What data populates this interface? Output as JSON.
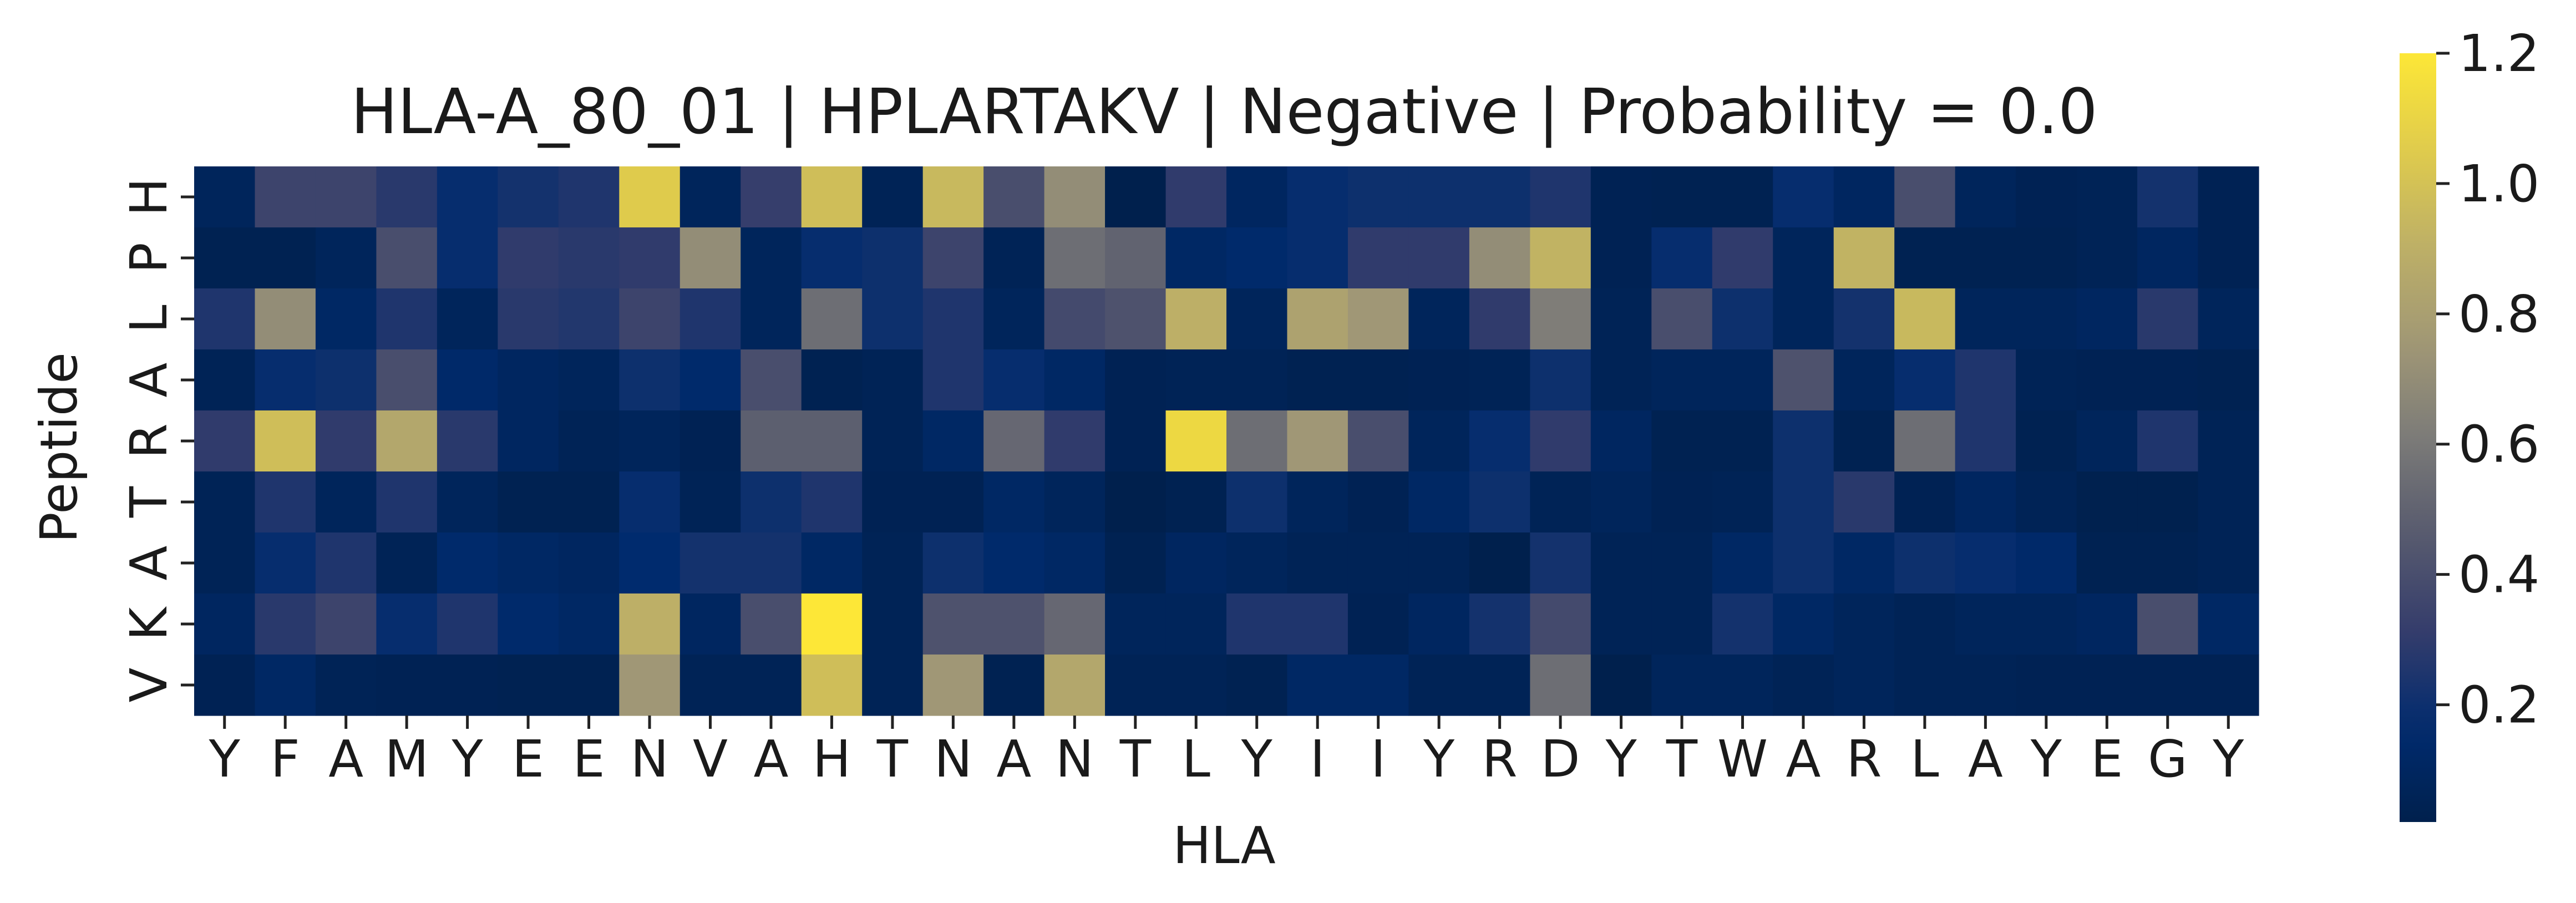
{
  "chart_data": {
    "type": "heatmap",
    "title": "HLA-A_80_01 | HPLARTAKV | Negative | Probability = 0.0",
    "xlabel": "HLA",
    "ylabel": "Peptide",
    "x_labels": [
      "Y",
      "F",
      "A",
      "M",
      "Y",
      "E",
      "E",
      "N",
      "V",
      "A",
      "H",
      "T",
      "N",
      "A",
      "N",
      "T",
      "L",
      "Y",
      "I",
      "I",
      "Y",
      "R",
      "D",
      "Y",
      "T",
      "W",
      "A",
      "R",
      "L",
      "A",
      "Y",
      "E",
      "G",
      "Y"
    ],
    "y_labels": [
      "H",
      "P",
      "L",
      "A",
      "R",
      "T",
      "A",
      "K",
      "V"
    ],
    "colorbar": {
      "colormap": "cividis",
      "vmin": 0.02,
      "vmax": 1.2,
      "ticks": [
        0.2,
        0.4,
        0.6,
        0.8,
        1.0,
        1.2
      ],
      "tick_labels": [
        "0.2",
        "0.4",
        "0.6",
        "0.8",
        "1.0",
        "1.2"
      ]
    },
    "values": [
      [
        0.08,
        0.35,
        0.35,
        0.28,
        0.18,
        0.22,
        0.25,
        1.05,
        0.08,
        0.32,
        0.98,
        0.06,
        0.95,
        0.4,
        0.7,
        0.02,
        0.3,
        0.1,
        0.18,
        0.2,
        0.2,
        0.2,
        0.25,
        0.05,
        0.04,
        0.04,
        0.18,
        0.1,
        0.4,
        0.08,
        0.05,
        0.06,
        0.22,
        0.05
      ],
      [
        0.04,
        0.04,
        0.08,
        0.4,
        0.18,
        0.3,
        0.28,
        0.3,
        0.7,
        0.08,
        0.18,
        0.2,
        0.35,
        0.06,
        0.55,
        0.5,
        0.12,
        0.15,
        0.18,
        0.3,
        0.3,
        0.7,
        0.92,
        0.05,
        0.18,
        0.3,
        0.08,
        0.92,
        0.04,
        0.04,
        0.04,
        0.06,
        0.1,
        0.05
      ],
      [
        0.25,
        0.7,
        0.12,
        0.25,
        0.08,
        0.28,
        0.26,
        0.35,
        0.25,
        0.08,
        0.55,
        0.2,
        0.25,
        0.08,
        0.38,
        0.42,
        0.9,
        0.08,
        0.82,
        0.75,
        0.08,
        0.3,
        0.62,
        0.06,
        0.4,
        0.2,
        0.08,
        0.22,
        0.95,
        0.08,
        0.08,
        0.1,
        0.28,
        0.08
      ],
      [
        0.06,
        0.18,
        0.2,
        0.4,
        0.14,
        0.1,
        0.08,
        0.2,
        0.15,
        0.4,
        0.04,
        0.06,
        0.25,
        0.18,
        0.12,
        0.05,
        0.06,
        0.06,
        0.04,
        0.04,
        0.05,
        0.06,
        0.2,
        0.06,
        0.08,
        0.08,
        0.42,
        0.08,
        0.18,
        0.25,
        0.06,
        0.05,
        0.05,
        0.04
      ],
      [
        0.3,
        0.98,
        0.3,
        0.85,
        0.28,
        0.1,
        0.06,
        0.08,
        0.05,
        0.48,
        0.48,
        0.06,
        0.12,
        0.52,
        0.3,
        0.05,
        1.12,
        0.55,
        0.75,
        0.4,
        0.08,
        0.18,
        0.3,
        0.1,
        0.04,
        0.04,
        0.2,
        0.04,
        0.55,
        0.25,
        0.04,
        0.08,
        0.25,
        0.06
      ],
      [
        0.06,
        0.25,
        0.08,
        0.25,
        0.08,
        0.04,
        0.04,
        0.18,
        0.06,
        0.2,
        0.25,
        0.05,
        0.05,
        0.12,
        0.08,
        0.02,
        0.04,
        0.2,
        0.08,
        0.05,
        0.12,
        0.2,
        0.06,
        0.08,
        0.05,
        0.06,
        0.2,
        0.28,
        0.05,
        0.1,
        0.06,
        0.03,
        0.03,
        0.06
      ],
      [
        0.06,
        0.18,
        0.25,
        0.06,
        0.15,
        0.12,
        0.1,
        0.16,
        0.22,
        0.22,
        0.12,
        0.06,
        0.2,
        0.15,
        0.12,
        0.04,
        0.1,
        0.08,
        0.06,
        0.06,
        0.06,
        0.02,
        0.22,
        0.06,
        0.06,
        0.12,
        0.2,
        0.12,
        0.2,
        0.18,
        0.14,
        0.04,
        0.04,
        0.06
      ],
      [
        0.1,
        0.28,
        0.35,
        0.18,
        0.25,
        0.15,
        0.12,
        0.9,
        0.1,
        0.4,
        1.2,
        0.06,
        0.42,
        0.42,
        0.52,
        0.08,
        0.08,
        0.25,
        0.25,
        0.05,
        0.1,
        0.22,
        0.38,
        0.06,
        0.06,
        0.22,
        0.12,
        0.08,
        0.06,
        0.08,
        0.08,
        0.1,
        0.4,
        0.12
      ],
      [
        0.05,
        0.12,
        0.06,
        0.05,
        0.05,
        0.04,
        0.04,
        0.75,
        0.06,
        0.06,
        0.98,
        0.06,
        0.75,
        0.04,
        0.85,
        0.06,
        0.06,
        0.04,
        0.12,
        0.12,
        0.06,
        0.06,
        0.55,
        0.02,
        0.08,
        0.08,
        0.06,
        0.08,
        0.06,
        0.06,
        0.05,
        0.05,
        0.05,
        0.05
      ]
    ]
  }
}
